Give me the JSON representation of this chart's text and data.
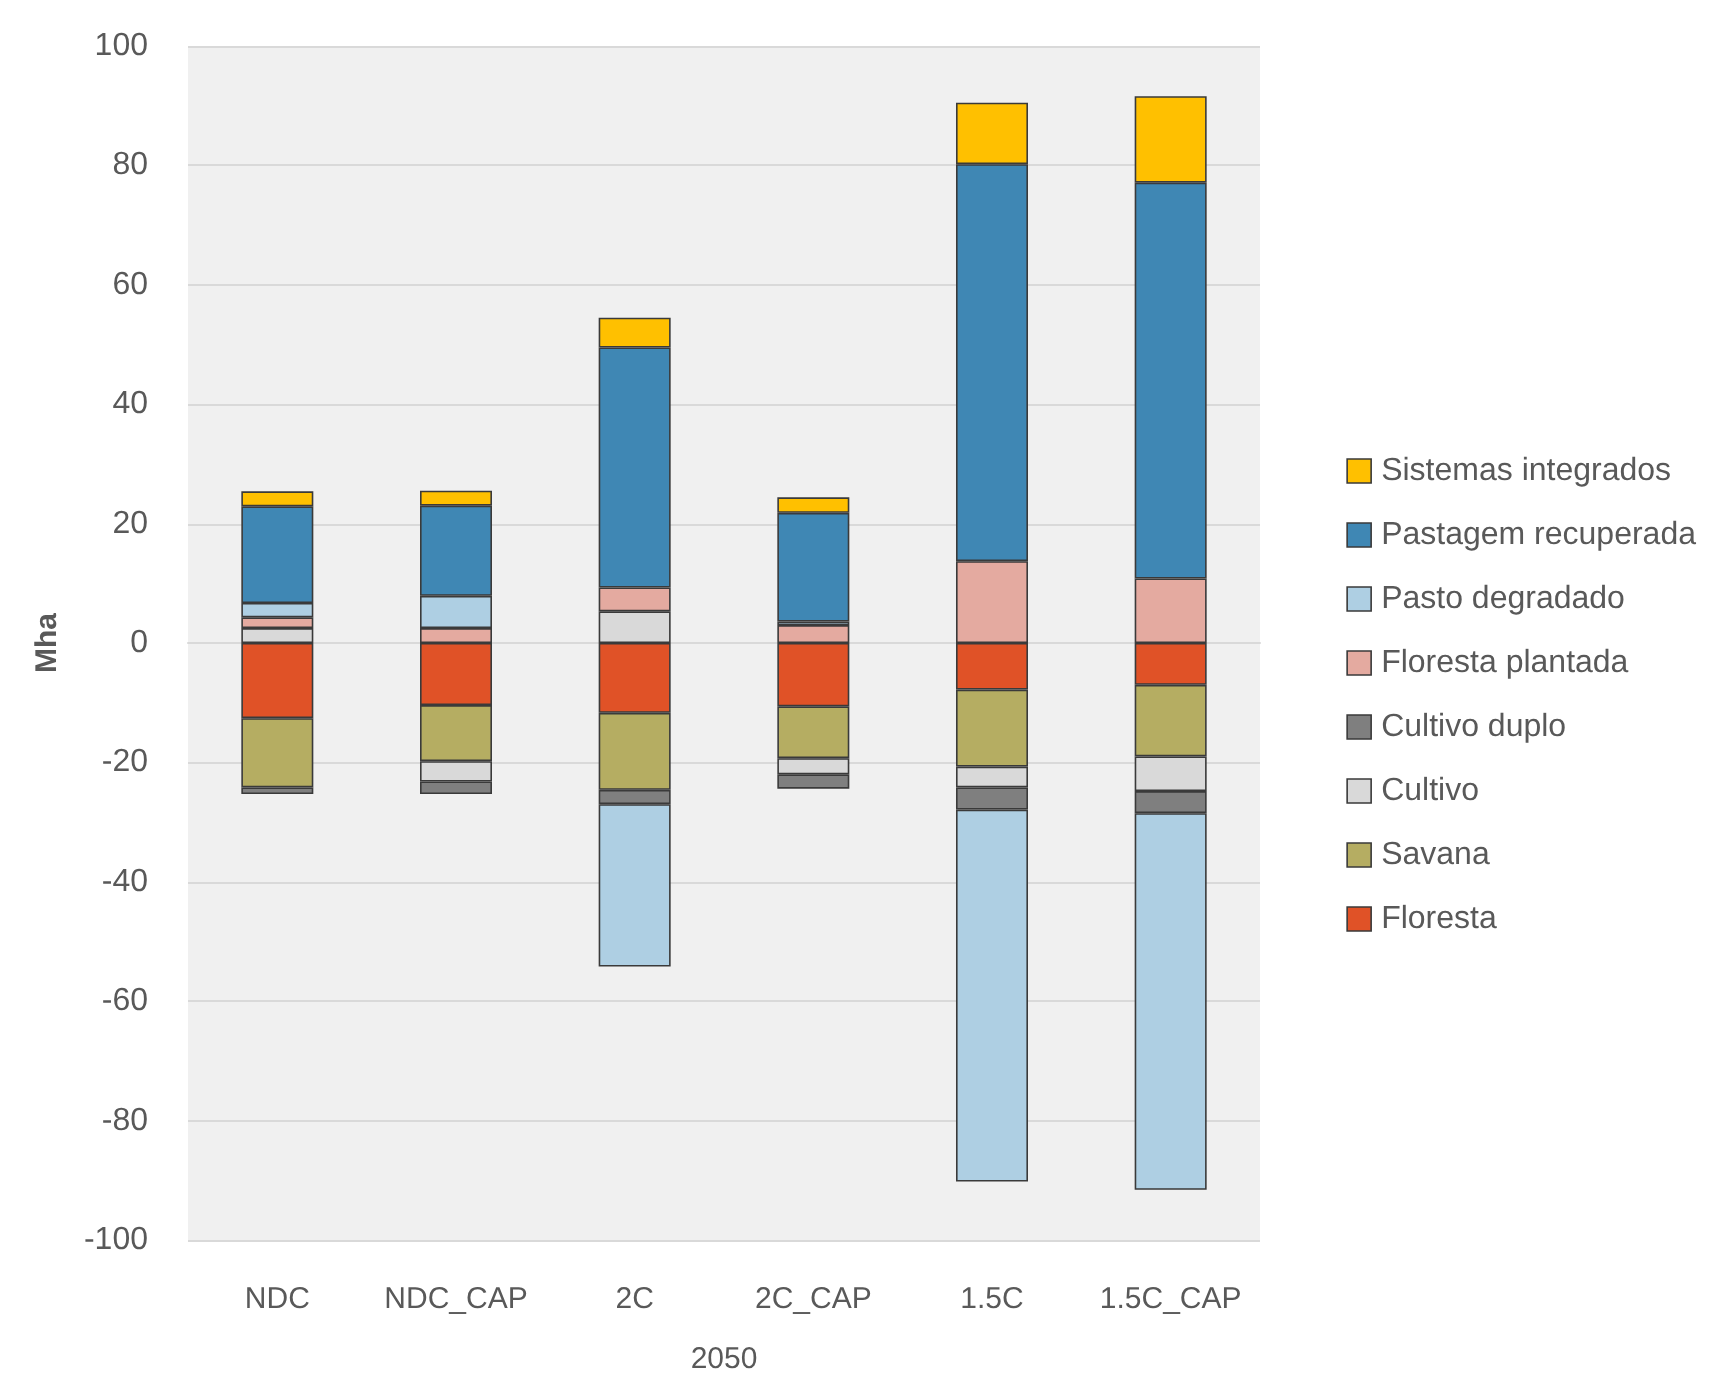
{
  "chart_data": {
    "type": "bar",
    "stacked": true,
    "xlabel": "2050",
    "ylabel": "Mha",
    "categories": [
      "NDC",
      "NDC_CAP",
      "2C",
      "2C_CAP",
      "1.5C",
      "1.5C_CAP"
    ],
    "series": [
      {
        "name": "Floresta",
        "color": "#e05227",
        "values": [
          -12.6,
          -10.4,
          -11.7,
          -10.6,
          -7.8,
          -7.0
        ]
      },
      {
        "name": "Savana",
        "color": "#b5ad62",
        "values": [
          -11.6,
          -9.4,
          -12.9,
          -8.7,
          -12.9,
          -12.0
        ]
      },
      {
        "name": "Cultivo",
        "color": "#d9d9d9",
        "values": [
          2.5,
          -3.4,
          5.3,
          -2.7,
          -3.5,
          -5.8
        ]
      },
      {
        "name": "Cultivo duplo",
        "color": "#7f7f7f",
        "values": [
          -1.1,
          -2.1,
          -2.4,
          -2.4,
          -3.7,
          -3.7
        ]
      },
      {
        "name": "Floresta plantada",
        "color": "#e4aaa0",
        "values": [
          1.8,
          2.5,
          4.0,
          3.0,
          13.7,
          10.8
        ]
      },
      {
        "name": "Pasto degradado",
        "color": "#aecfe3",
        "values": [
          2.4,
          5.4,
          -27.2,
          0.6,
          -62.3,
          -63.1
        ]
      },
      {
        "name": "Pastagem recuperada",
        "color": "#3f87b4",
        "values": [
          16.2,
          15.1,
          40.2,
          18.2,
          66.5,
          66.3
        ]
      },
      {
        "name": "Sistemas integrados",
        "color": "#ffc000",
        "values": [
          2.5,
          2.5,
          5.0,
          2.6,
          10.3,
          14.5
        ]
      }
    ],
    "ylim": [
      -100,
      100
    ],
    "yticks": [
      -100,
      -80,
      -60,
      -40,
      -20,
      0,
      20,
      40,
      60,
      80,
      100
    ],
    "grid": "y",
    "legend": "right"
  }
}
